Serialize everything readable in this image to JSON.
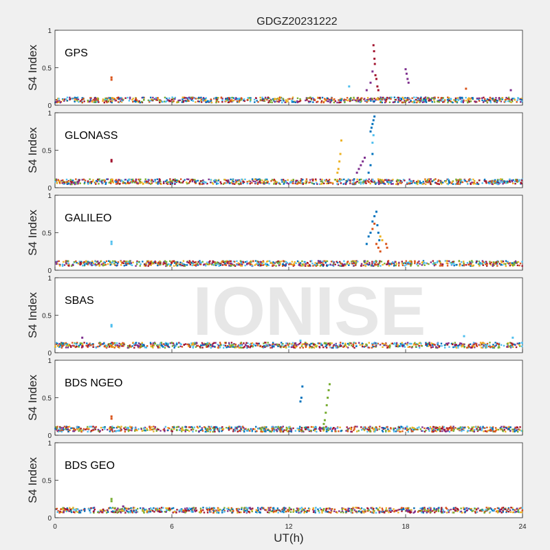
{
  "chart_data": {
    "type": "scatter",
    "title": "GDGZ20231222",
    "xlabel": "UT(h)",
    "ylabel": "S4 Index",
    "xlim": [
      0,
      24
    ],
    "ylim": [
      0,
      1
    ],
    "x_ticks": [
      "0",
      "6",
      "12",
      "18",
      "24"
    ],
    "y_ticks": [
      "0",
      "0.5",
      "1"
    ],
    "grid": false,
    "watermark": "IONISE",
    "series_colors": [
      "#0072bd",
      "#d95319",
      "#edb120",
      "#7e2f8e",
      "#77ac30",
      "#4dbeee",
      "#a2142f"
    ],
    "panels": [
      {
        "name": "GPS",
        "baseline": 0.07,
        "excursions": [
          {
            "points": [
              [
                2.9,
                0.34
              ],
              [
                2.9,
                0.37
              ]
            ],
            "color": "#d95319"
          },
          {
            "points": [
              [
                15.1,
                0.25
              ]
            ],
            "color": "#4dbeee"
          },
          {
            "points": [
              [
                16.35,
                0.8
              ],
              [
                16.38,
                0.72
              ],
              [
                16.4,
                0.62
              ],
              [
                16.42,
                0.55
              ],
              [
                16.45,
                0.4
              ],
              [
                16.5,
                0.35
              ],
              [
                16.55,
                0.25
              ],
              [
                16.6,
                0.2
              ]
            ],
            "color": "#a2142f"
          },
          {
            "points": [
              [
                16.0,
                0.2
              ],
              [
                16.2,
                0.3
              ],
              [
                16.3,
                0.45
              ]
            ],
            "color": "#7e2f8e"
          },
          {
            "points": [
              [
                18.0,
                0.48
              ],
              [
                18.05,
                0.42
              ],
              [
                18.1,
                0.35
              ],
              [
                18.15,
                0.3
              ]
            ],
            "color": "#7e2f8e"
          },
          {
            "points": [
              [
                21.1,
                0.22
              ]
            ],
            "color": "#d95319"
          },
          {
            "points": [
              [
                23.4,
                0.2
              ]
            ],
            "color": "#7e2f8e"
          }
        ]
      },
      {
        "name": "GLONASS",
        "baseline": 0.08,
        "excursions": [
          {
            "points": [
              [
                2.9,
                0.37
              ],
              [
                2.9,
                0.35
              ]
            ],
            "color": "#a2142f"
          },
          {
            "points": [
              [
                14.7,
                0.63
              ],
              [
                14.65,
                0.45
              ],
              [
                14.6,
                0.35
              ],
              [
                14.55,
                0.25
              ],
              [
                14.5,
                0.2
              ]
            ],
            "color": "#edb120"
          },
          {
            "points": [
              [
                15.5,
                0.2
              ],
              [
                15.6,
                0.25
              ],
              [
                15.7,
                0.3
              ],
              [
                15.8,
                0.35
              ],
              [
                15.9,
                0.4
              ]
            ],
            "color": "#7e2f8e"
          },
          {
            "points": [
              [
                16.2,
                0.75
              ],
              [
                16.25,
                0.8
              ],
              [
                16.3,
                0.85
              ],
              [
                16.35,
                0.9
              ],
              [
                16.4,
                0.95
              ],
              [
                16.3,
                0.45
              ],
              [
                16.2,
                0.3
              ],
              [
                16.1,
                0.2
              ]
            ],
            "color": "#0072bd"
          },
          {
            "points": [
              [
                16.35,
                0.7
              ],
              [
                16.3,
                0.6
              ]
            ],
            "color": "#4dbeee"
          }
        ]
      },
      {
        "name": "GALILEO",
        "baseline": 0.09,
        "excursions": [
          {
            "points": [
              [
                2.9,
                0.38
              ],
              [
                2.9,
                0.35
              ]
            ],
            "color": "#4dbeee"
          },
          {
            "points": [
              [
                16.0,
                0.35
              ],
              [
                16.1,
                0.45
              ],
              [
                16.2,
                0.5
              ],
              [
                16.3,
                0.65
              ],
              [
                16.4,
                0.72
              ],
              [
                16.5,
                0.78
              ],
              [
                16.55,
                0.6
              ],
              [
                16.6,
                0.5
              ],
              [
                16.65,
                0.4
              ]
            ],
            "color": "#0072bd"
          },
          {
            "points": [
              [
                16.3,
                0.55
              ],
              [
                16.4,
                0.62
              ],
              [
                16.5,
                0.35
              ],
              [
                16.6,
                0.3
              ],
              [
                16.7,
                0.25
              ]
            ],
            "color": "#d95319"
          },
          {
            "points": [
              [
                17.0,
                0.35
              ],
              [
                17.05,
                0.3
              ]
            ],
            "color": "#d95319"
          },
          {
            "points": [
              [
                16.7,
                0.45
              ],
              [
                16.8,
                0.4
              ]
            ],
            "color": "#edb120"
          }
        ]
      },
      {
        "name": "SBAS",
        "baseline": 0.1,
        "excursions": [
          {
            "points": [
              [
                2.9,
                0.37
              ],
              [
                2.9,
                0.35
              ]
            ],
            "color": "#4dbeee"
          },
          {
            "points": [
              [
                1.4,
                0.2
              ]
            ],
            "color": "#7e2f8e"
          },
          {
            "points": [
              [
                12.6,
                0.16
              ]
            ],
            "color": "#4dbeee"
          },
          {
            "points": [
              [
                21.0,
                0.22
              ]
            ],
            "color": "#4dbeee"
          },
          {
            "points": [
              [
                23.5,
                0.2
              ]
            ],
            "color": "#4dbeee"
          }
        ]
      },
      {
        "name": "BDS NGEO",
        "baseline": 0.08,
        "excursions": [
          {
            "points": [
              [
                2.9,
                0.25
              ],
              [
                2.9,
                0.22
              ]
            ],
            "color": "#d95319"
          },
          {
            "points": [
              [
                12.7,
                0.65
              ],
              [
                12.65,
                0.5
              ],
              [
                12.6,
                0.45
              ]
            ],
            "color": "#0072bd"
          },
          {
            "points": [
              [
                14.1,
                0.68
              ],
              [
                14.05,
                0.6
              ],
              [
                14.0,
                0.5
              ],
              [
                13.95,
                0.4
              ],
              [
                13.9,
                0.3
              ],
              [
                13.85,
                0.2
              ],
              [
                13.8,
                0.15
              ],
              [
                13.8,
                0.1
              ]
            ],
            "color": "#77ac30"
          }
        ]
      },
      {
        "name": "BDS GEO",
        "baseline": 0.1,
        "excursions": [
          {
            "points": [
              [
                2.9,
                0.25
              ],
              [
                2.9,
                0.22
              ]
            ],
            "color": "#77ac30"
          },
          {
            "points": [
              [
                3.5,
                0.15
              ]
            ],
            "color": "#7e2f8e"
          }
        ]
      }
    ]
  }
}
